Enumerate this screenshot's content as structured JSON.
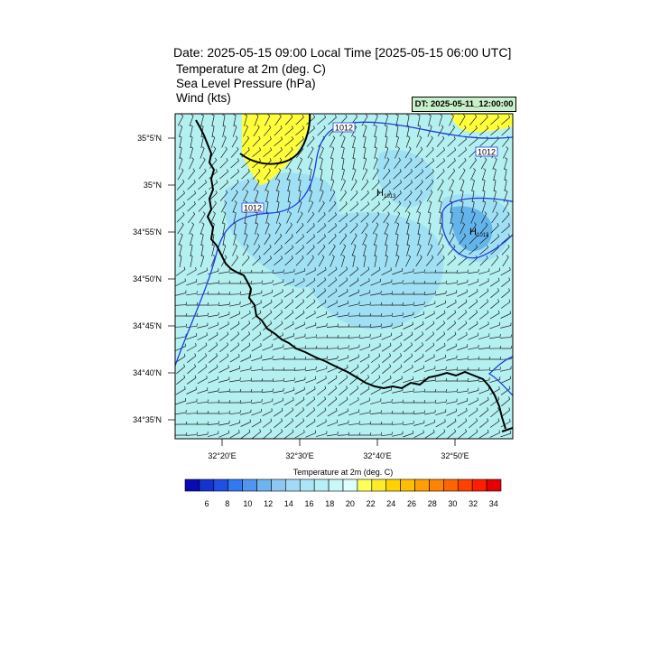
{
  "header": {
    "title": "Date: 2025-05-15  09:00 Local Time [2025-05-15  06:00 UTC]",
    "line1": "Temperature at 2m   (deg. C)",
    "line2": "Sea Level Pressure   (hPa)",
    "line3": "Wind   (kts)",
    "dt_label": "DT: 2025-05-11_12:00:00"
  },
  "map": {
    "lat_labels": [
      "35°5'N",
      "35°N",
      "34°55'N",
      "34°50'N",
      "34°45'N",
      "34°40'N",
      "34°35'N"
    ],
    "lon_labels": [
      "32°20'E",
      "32°30'E",
      "32°40'E",
      "32°50'E"
    ],
    "isobar_labels": [
      "1012",
      "1012",
      "1012"
    ],
    "high_marks": [
      {
        "symbol": "H",
        "value": "1013"
      },
      {
        "symbol": "H",
        "value": "1013"
      }
    ],
    "colors": {
      "land_base": "#b4f0f0",
      "warm": "#ffff3c",
      "cool": "#a0e0f5",
      "cool_dark": "#64b4ec",
      "isobar": "#1e3cdc",
      "coast": "#000000"
    }
  },
  "colorbar": {
    "title": "Temperature at 2m  (deg. C)",
    "ticks": [
      "6",
      "8",
      "10",
      "12",
      "14",
      "16",
      "18",
      "20",
      "22",
      "24",
      "26",
      "28",
      "30",
      "32",
      "34"
    ],
    "colors": [
      "#0a0ab4",
      "#1432d2",
      "#1e50e6",
      "#3278f0",
      "#5096f0",
      "#6eb4f0",
      "#8cc8f0",
      "#a0daf5",
      "#aae6f5",
      "#b4f0f5",
      "#c8f8f8",
      "#dcffff",
      "#ffff5a",
      "#ffeb28",
      "#ffd200",
      "#ffbe00",
      "#ffa000",
      "#ff8200",
      "#ff6400",
      "#ff4100",
      "#ff1e00",
      "#e60000"
    ]
  }
}
